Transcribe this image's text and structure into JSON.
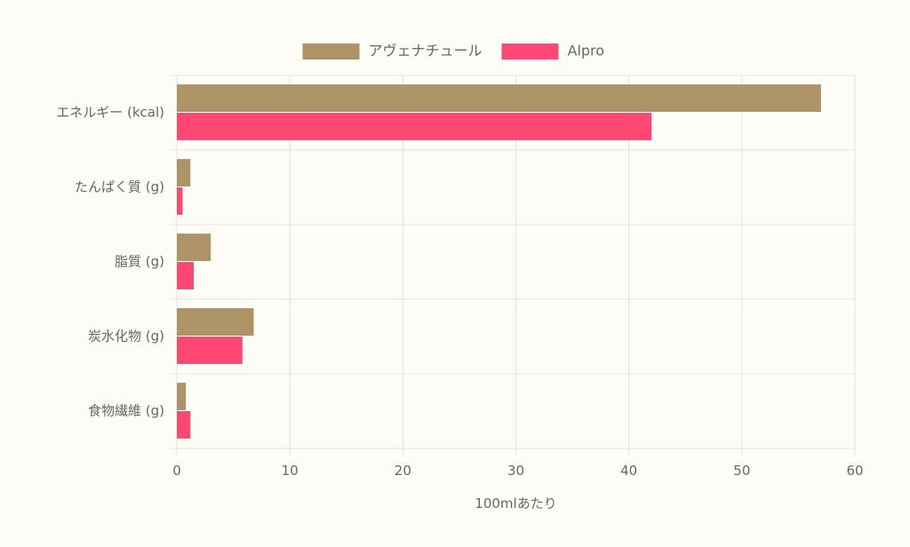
{
  "chart_data": {
    "type": "bar",
    "orientation": "horizontal",
    "categories": [
      "エネルギー (kcal)",
      "たんぱく質 (g)",
      "脂質 (g)",
      "炭水化物 (g)",
      "食物繊維 (g)"
    ],
    "series": [
      {
        "name": "アヴェナチュール",
        "color": "#ae9366",
        "values": [
          57,
          1.2,
          3.0,
          6.8,
          0.8
        ]
      },
      {
        "name": "Alpro",
        "color": "#ff4773",
        "values": [
          42,
          0.5,
          1.5,
          5.8,
          1.2
        ]
      }
    ],
    "xlabel": "100mlあたり",
    "ylabel": "",
    "xlim": [
      0,
      60
    ],
    "xticks": [
      0,
      10,
      20,
      30,
      40,
      50,
      60
    ],
    "grid": true,
    "legend_position": "top"
  }
}
